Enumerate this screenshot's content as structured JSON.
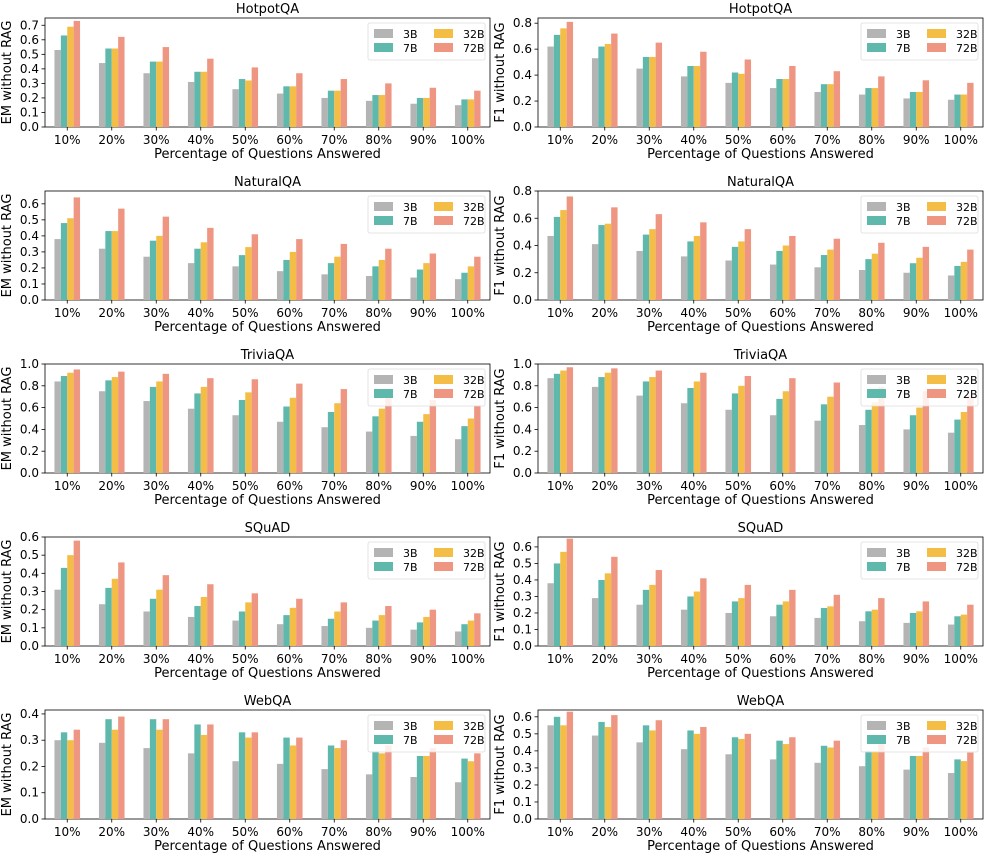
{
  "figure": {
    "x_label": "Percentage of Questions Answered",
    "categories": [
      "10%",
      "20%",
      "30%",
      "40%",
      "50%",
      "60%",
      "70%",
      "80%",
      "90%",
      "100%"
    ],
    "series_names": [
      "3B",
      "7B",
      "32B",
      "72B"
    ],
    "colors": [
      "#b4b4b4",
      "#5fb8ac",
      "#f4bd46",
      "#ee9682"
    ]
  },
  "chart_data": [
    {
      "type": "bar",
      "title": "HotpotQA",
      "xlabel": "Percentage of Questions Answered",
      "ylabel": "EM without RAG",
      "categories": [
        "10%",
        "20%",
        "30%",
        "40%",
        "50%",
        "60%",
        "70%",
        "80%",
        "90%",
        "100%"
      ],
      "ylim": [
        0,
        0.75
      ],
      "yticks": [
        0,
        0.1,
        0.2,
        0.3,
        0.4,
        0.5,
        0.6,
        0.7
      ],
      "legend": "top-right",
      "series": [
        {
          "name": "3B",
          "values": [
            0.53,
            0.44,
            0.37,
            0.31,
            0.26,
            0.23,
            0.2,
            0.18,
            0.16,
            0.15
          ]
        },
        {
          "name": "7B",
          "values": [
            0.63,
            0.54,
            0.45,
            0.38,
            0.33,
            0.28,
            0.25,
            0.22,
            0.2,
            0.19
          ]
        },
        {
          "name": "32B",
          "values": [
            0.69,
            0.54,
            0.45,
            0.38,
            0.32,
            0.28,
            0.25,
            0.22,
            0.2,
            0.19
          ]
        },
        {
          "name": "72B",
          "values": [
            0.73,
            0.62,
            0.55,
            0.47,
            0.41,
            0.37,
            0.33,
            0.3,
            0.27,
            0.25
          ]
        }
      ]
    },
    {
      "type": "bar",
      "title": "HotpotQA",
      "xlabel": "Percentage of Questions Answered",
      "ylabel": "F1 without RAG",
      "categories": [
        "10%",
        "20%",
        "30%",
        "40%",
        "50%",
        "60%",
        "70%",
        "80%",
        "90%",
        "100%"
      ],
      "ylim": [
        0,
        0.84
      ],
      "yticks": [
        0,
        0.2,
        0.4,
        0.6,
        0.8
      ],
      "legend": "top-right",
      "series": [
        {
          "name": "3B",
          "values": [
            0.62,
            0.53,
            0.45,
            0.39,
            0.34,
            0.3,
            0.27,
            0.25,
            0.22,
            0.21
          ]
        },
        {
          "name": "7B",
          "values": [
            0.71,
            0.62,
            0.54,
            0.47,
            0.42,
            0.37,
            0.33,
            0.3,
            0.27,
            0.25
          ]
        },
        {
          "name": "32B",
          "values": [
            0.76,
            0.64,
            0.54,
            0.47,
            0.41,
            0.37,
            0.33,
            0.3,
            0.27,
            0.25
          ]
        },
        {
          "name": "72B",
          "values": [
            0.81,
            0.72,
            0.65,
            0.58,
            0.52,
            0.47,
            0.43,
            0.39,
            0.36,
            0.34
          ]
        }
      ]
    },
    {
      "type": "bar",
      "title": "NaturalQA",
      "xlabel": "Percentage of Questions Answered",
      "ylabel": "EM without RAG",
      "categories": [
        "10%",
        "20%",
        "30%",
        "40%",
        "50%",
        "60%",
        "70%",
        "80%",
        "90%",
        "100%"
      ],
      "ylim": [
        0,
        0.68
      ],
      "yticks": [
        0,
        0.1,
        0.2,
        0.3,
        0.4,
        0.5,
        0.6
      ],
      "legend": "top-right",
      "series": [
        {
          "name": "3B",
          "values": [
            0.38,
            0.32,
            0.27,
            0.23,
            0.21,
            0.18,
            0.16,
            0.15,
            0.14,
            0.13
          ]
        },
        {
          "name": "7B",
          "values": [
            0.48,
            0.43,
            0.37,
            0.32,
            0.28,
            0.25,
            0.23,
            0.21,
            0.19,
            0.17
          ]
        },
        {
          "name": "32B",
          "values": [
            0.51,
            0.43,
            0.4,
            0.36,
            0.33,
            0.3,
            0.27,
            0.25,
            0.23,
            0.21
          ]
        },
        {
          "name": "72B",
          "values": [
            0.64,
            0.57,
            0.52,
            0.45,
            0.41,
            0.38,
            0.35,
            0.32,
            0.29,
            0.27
          ]
        }
      ]
    },
    {
      "type": "bar",
      "title": "NaturalQA",
      "xlabel": "Percentage of Questions Answered",
      "ylabel": "F1 without RAG",
      "categories": [
        "10%",
        "20%",
        "30%",
        "40%",
        "50%",
        "60%",
        "70%",
        "80%",
        "90%",
        "100%"
      ],
      "ylim": [
        0,
        0.8
      ],
      "yticks": [
        0,
        0.2,
        0.4,
        0.6,
        0.8
      ],
      "legend": "top-right",
      "series": [
        {
          "name": "3B",
          "values": [
            0.47,
            0.41,
            0.36,
            0.32,
            0.29,
            0.26,
            0.24,
            0.22,
            0.2,
            0.18
          ]
        },
        {
          "name": "7B",
          "values": [
            0.61,
            0.55,
            0.48,
            0.43,
            0.39,
            0.36,
            0.33,
            0.3,
            0.27,
            0.25
          ]
        },
        {
          "name": "32B",
          "values": [
            0.66,
            0.56,
            0.52,
            0.47,
            0.43,
            0.4,
            0.37,
            0.34,
            0.31,
            0.28
          ]
        },
        {
          "name": "72B",
          "values": [
            0.76,
            0.68,
            0.63,
            0.57,
            0.52,
            0.47,
            0.45,
            0.42,
            0.39,
            0.37
          ]
        }
      ]
    },
    {
      "type": "bar",
      "title": "TriviaQA",
      "xlabel": "Percentage of Questions Answered",
      "ylabel": "EM without RAG",
      "categories": [
        "10%",
        "20%",
        "30%",
        "40%",
        "50%",
        "60%",
        "70%",
        "80%",
        "90%",
        "100%"
      ],
      "ylim": [
        0,
        1.0
      ],
      "yticks": [
        0,
        0.2,
        0.4,
        0.6,
        0.8,
        1.0
      ],
      "legend": "top-right",
      "series": [
        {
          "name": "3B",
          "values": [
            0.84,
            0.75,
            0.66,
            0.59,
            0.53,
            0.47,
            0.42,
            0.38,
            0.34,
            0.31
          ]
        },
        {
          "name": "7B",
          "values": [
            0.89,
            0.85,
            0.79,
            0.73,
            0.67,
            0.61,
            0.56,
            0.52,
            0.47,
            0.43
          ]
        },
        {
          "name": "32B",
          "values": [
            0.92,
            0.88,
            0.84,
            0.79,
            0.74,
            0.69,
            0.64,
            0.59,
            0.54,
            0.5
          ]
        },
        {
          "name": "72B",
          "values": [
            0.95,
            0.93,
            0.91,
            0.87,
            0.86,
            0.82,
            0.77,
            0.72,
            0.67,
            0.62
          ]
        }
      ]
    },
    {
      "type": "bar",
      "title": "TriviaQA",
      "xlabel": "Percentage of Questions Answered",
      "ylabel": "F1 without RAG",
      "categories": [
        "10%",
        "20%",
        "30%",
        "40%",
        "50%",
        "60%",
        "70%",
        "80%",
        "90%",
        "100%"
      ],
      "ylim": [
        0,
        1.0
      ],
      "yticks": [
        0,
        0.2,
        0.4,
        0.6,
        0.8,
        1.0
      ],
      "legend": "top-right",
      "series": [
        {
          "name": "3B",
          "values": [
            0.87,
            0.79,
            0.71,
            0.64,
            0.58,
            0.53,
            0.48,
            0.44,
            0.4,
            0.37
          ]
        },
        {
          "name": "7B",
          "values": [
            0.91,
            0.88,
            0.84,
            0.78,
            0.73,
            0.68,
            0.63,
            0.58,
            0.53,
            0.49
          ]
        },
        {
          "name": "32B",
          "values": [
            0.94,
            0.92,
            0.88,
            0.84,
            0.8,
            0.75,
            0.7,
            0.65,
            0.6,
            0.56
          ]
        },
        {
          "name": "72B",
          "values": [
            0.97,
            0.96,
            0.94,
            0.92,
            0.89,
            0.87,
            0.83,
            0.79,
            0.75,
            0.71
          ]
        }
      ]
    },
    {
      "type": "bar",
      "title": "SQuAD",
      "xlabel": "Percentage of Questions Answered",
      "ylabel": "EM without RAG",
      "categories": [
        "10%",
        "20%",
        "30%",
        "40%",
        "50%",
        "60%",
        "70%",
        "80%",
        "90%",
        "100%"
      ],
      "ylim": [
        0,
        0.6
      ],
      "yticks": [
        0,
        0.1,
        0.2,
        0.3,
        0.4,
        0.5,
        0.6
      ],
      "legend": "top-right",
      "series": [
        {
          "name": "3B",
          "values": [
            0.31,
            0.23,
            0.19,
            0.16,
            0.14,
            0.12,
            0.11,
            0.1,
            0.09,
            0.08
          ]
        },
        {
          "name": "7B",
          "values": [
            0.43,
            0.32,
            0.26,
            0.22,
            0.19,
            0.17,
            0.15,
            0.14,
            0.13,
            0.12
          ]
        },
        {
          "name": "32B",
          "values": [
            0.5,
            0.37,
            0.31,
            0.27,
            0.24,
            0.21,
            0.19,
            0.17,
            0.16,
            0.14
          ]
        },
        {
          "name": "72B",
          "values": [
            0.58,
            0.46,
            0.39,
            0.34,
            0.29,
            0.26,
            0.24,
            0.22,
            0.2,
            0.18
          ]
        }
      ]
    },
    {
      "type": "bar",
      "title": "SQuAD",
      "xlabel": "Percentage of Questions Answered",
      "ylabel": "F1 without RAG",
      "categories": [
        "10%",
        "20%",
        "30%",
        "40%",
        "50%",
        "60%",
        "70%",
        "80%",
        "90%",
        "100%"
      ],
      "ylim": [
        0,
        0.66
      ],
      "yticks": [
        0,
        0.1,
        0.2,
        0.3,
        0.4,
        0.5,
        0.6
      ],
      "legend": "top-right",
      "series": [
        {
          "name": "3B",
          "values": [
            0.38,
            0.29,
            0.25,
            0.22,
            0.2,
            0.18,
            0.17,
            0.15,
            0.14,
            0.13
          ]
        },
        {
          "name": "7B",
          "values": [
            0.5,
            0.4,
            0.34,
            0.3,
            0.27,
            0.25,
            0.23,
            0.21,
            0.2,
            0.18
          ]
        },
        {
          "name": "32B",
          "values": [
            0.57,
            0.44,
            0.37,
            0.33,
            0.29,
            0.27,
            0.24,
            0.22,
            0.21,
            0.19
          ]
        },
        {
          "name": "72B",
          "values": [
            0.65,
            0.54,
            0.46,
            0.41,
            0.37,
            0.34,
            0.31,
            0.29,
            0.27,
            0.25
          ]
        }
      ]
    },
    {
      "type": "bar",
      "title": "WebQA",
      "xlabel": "Percentage of Questions Answered",
      "ylabel": "EM without RAG",
      "categories": [
        "10%",
        "20%",
        "30%",
        "40%",
        "50%",
        "60%",
        "70%",
        "80%",
        "90%",
        "100%"
      ],
      "ylim": [
        0,
        0.415
      ],
      "yticks": [
        0,
        0.1,
        0.2,
        0.3,
        0.4
      ],
      "legend": "top-right",
      "series": [
        {
          "name": "3B",
          "values": [
            0.3,
            0.29,
            0.27,
            0.25,
            0.22,
            0.21,
            0.19,
            0.17,
            0.16,
            0.14
          ]
        },
        {
          "name": "7B",
          "values": [
            0.33,
            0.38,
            0.38,
            0.36,
            0.33,
            0.31,
            0.28,
            0.26,
            0.24,
            0.23
          ]
        },
        {
          "name": "32B",
          "values": [
            0.3,
            0.34,
            0.34,
            0.32,
            0.31,
            0.28,
            0.27,
            0.25,
            0.24,
            0.22
          ]
        },
        {
          "name": "72B",
          "values": [
            0.34,
            0.39,
            0.38,
            0.36,
            0.33,
            0.31,
            0.3,
            0.28,
            0.27,
            0.25
          ]
        }
      ]
    },
    {
      "type": "bar",
      "title": "WebQA",
      "xlabel": "Percentage of Questions Answered",
      "ylabel": "F1 without RAG",
      "categories": [
        "10%",
        "20%",
        "30%",
        "40%",
        "50%",
        "60%",
        "70%",
        "80%",
        "90%",
        "100%"
      ],
      "ylim": [
        0,
        0.64
      ],
      "yticks": [
        0,
        0.1,
        0.2,
        0.3,
        0.4,
        0.5,
        0.6
      ],
      "legend": "top-right",
      "series": [
        {
          "name": "3B",
          "values": [
            0.55,
            0.49,
            0.45,
            0.41,
            0.38,
            0.35,
            0.33,
            0.31,
            0.29,
            0.27
          ]
        },
        {
          "name": "7B",
          "values": [
            0.6,
            0.57,
            0.55,
            0.52,
            0.48,
            0.46,
            0.43,
            0.4,
            0.37,
            0.35
          ]
        },
        {
          "name": "32B",
          "values": [
            0.55,
            0.54,
            0.52,
            0.5,
            0.47,
            0.44,
            0.42,
            0.4,
            0.37,
            0.34
          ]
        },
        {
          "name": "72B",
          "values": [
            0.63,
            0.61,
            0.58,
            0.54,
            0.5,
            0.48,
            0.46,
            0.44,
            0.42,
            0.39
          ]
        }
      ]
    }
  ]
}
